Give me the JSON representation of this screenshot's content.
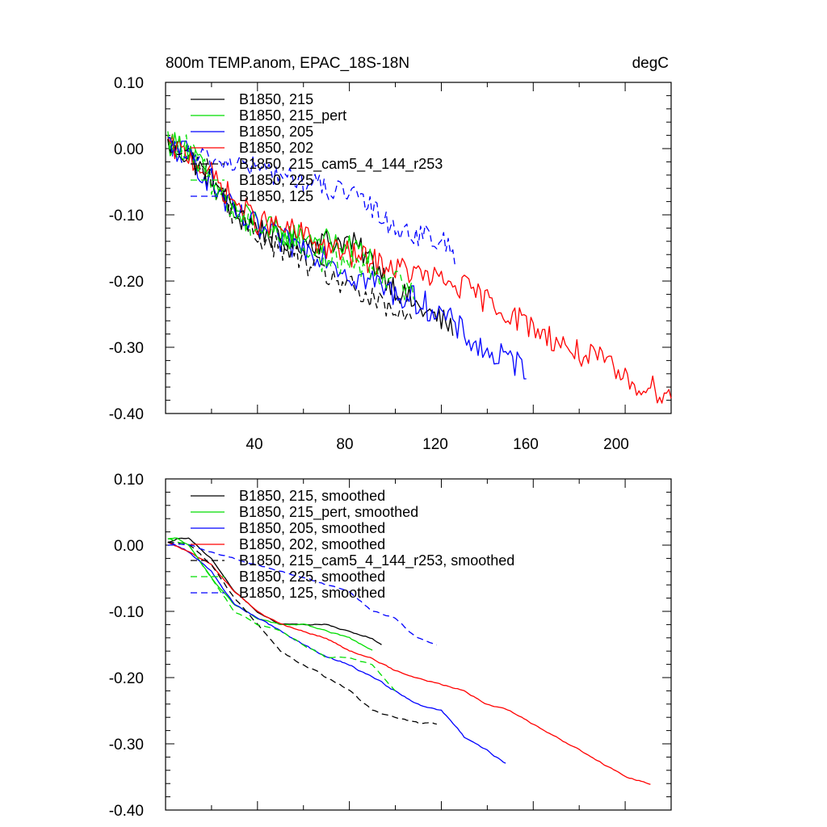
{
  "chart_data": [
    {
      "type": "line",
      "title": "800m TEMP.anom, EPAC_18S-18N",
      "units_label": "degC",
      "xlim": [
        0,
        220
      ],
      "ylim": [
        -0.4,
        0.1
      ],
      "x_ticks": [
        "40",
        "80",
        "120",
        "160",
        "200"
      ],
      "y_ticks": [
        "0.10",
        "0.00",
        "-0.10",
        "-0.20",
        "-0.30",
        "-0.40"
      ],
      "legend_position": "top-left",
      "series": [
        {
          "name": "B1850, 215",
          "color": "#000000",
          "dash": "solid",
          "length": 125,
          "anchors": [
            [
              1,
              0.005
            ],
            [
              10,
              -0.01
            ],
            [
              20,
              -0.05
            ],
            [
              30,
              -0.1
            ],
            [
              40,
              -0.12
            ],
            [
              50,
              -0.14
            ],
            [
              60,
              -0.14
            ],
            [
              70,
              -0.14
            ],
            [
              80,
              -0.14
            ],
            [
              90,
              -0.17
            ],
            [
              100,
              -0.21
            ],
            [
              110,
              -0.24
            ],
            [
              120,
              -0.26
            ],
            [
              125,
              -0.27
            ]
          ],
          "noise": 0.02
        },
        {
          "name": "B1850, 215_pert",
          "color": "#00dd00",
          "dash": "solid",
          "length": 90,
          "anchors": [
            [
              1,
              0.01
            ],
            [
              10,
              0.0
            ],
            [
              20,
              -0.05
            ],
            [
              30,
              -0.09
            ],
            [
              40,
              -0.11
            ],
            [
              50,
              -0.13
            ],
            [
              60,
              -0.13
            ],
            [
              70,
              -0.14
            ],
            [
              80,
              -0.15
            ],
            [
              90,
              -0.16
            ]
          ],
          "noise": 0.02
        },
        {
          "name": "B1850, 205",
          "color": "#0000ff",
          "dash": "solid",
          "length": 157,
          "anchors": [
            [
              1,
              0.005
            ],
            [
              10,
              -0.01
            ],
            [
              20,
              -0.05
            ],
            [
              30,
              -0.1
            ],
            [
              40,
              -0.12
            ],
            [
              50,
              -0.14
            ],
            [
              60,
              -0.15
            ],
            [
              70,
              -0.16
            ],
            [
              80,
              -0.19
            ],
            [
              90,
              -0.2
            ],
            [
              100,
              -0.22
            ],
            [
              110,
              -0.23
            ],
            [
              120,
              -0.25
            ],
            [
              130,
              -0.28
            ],
            [
              140,
              -0.31
            ],
            [
              150,
              -0.32
            ],
            [
              157,
              -0.33
            ]
          ],
          "noise": 0.022
        },
        {
          "name": "B1850, 202",
          "color": "#ff0000",
          "dash": "solid",
          "length": 220,
          "anchors": [
            [
              1,
              0.005
            ],
            [
              10,
              -0.01
            ],
            [
              20,
              -0.04
            ],
            [
              30,
              -0.08
            ],
            [
              40,
              -0.11
            ],
            [
              50,
              -0.12
            ],
            [
              60,
              -0.13
            ],
            [
              70,
              -0.15
            ],
            [
              80,
              -0.16
            ],
            [
              90,
              -0.17
            ],
            [
              100,
              -0.18
            ],
            [
              110,
              -0.19
            ],
            [
              120,
              -0.2
            ],
            [
              130,
              -0.21
            ],
            [
              140,
              -0.23
            ],
            [
              150,
              -0.25
            ],
            [
              160,
              -0.27
            ],
            [
              170,
              -0.29
            ],
            [
              180,
              -0.31
            ],
            [
              190,
              -0.32
            ],
            [
              200,
              -0.35
            ],
            [
              210,
              -0.36
            ],
            [
              220,
              -0.37
            ]
          ],
          "noise": 0.02
        },
        {
          "name": "B1850, 215_cam5_4_144_r253",
          "color": "#000000",
          "dash": "dashed",
          "length": 107,
          "anchors": [
            [
              1,
              0.0
            ],
            [
              10,
              -0.01
            ],
            [
              20,
              -0.04
            ],
            [
              30,
              -0.1
            ],
            [
              40,
              -0.13
            ],
            [
              50,
              -0.15
            ],
            [
              60,
              -0.17
            ],
            [
              70,
              -0.19
            ],
            [
              80,
              -0.21
            ],
            [
              90,
              -0.23
            ],
            [
              100,
              -0.25
            ],
            [
              107,
              -0.26
            ]
          ],
          "noise": 0.02
        },
        {
          "name": "B1850, 225",
          "color": "#00dd00",
          "dash": "dashed",
          "length": 108,
          "anchors": [
            [
              1,
              0.01
            ],
            [
              10,
              0.0
            ],
            [
              20,
              -0.05
            ],
            [
              30,
              -0.1
            ],
            [
              40,
              -0.12
            ],
            [
              50,
              -0.13
            ],
            [
              60,
              -0.15
            ],
            [
              70,
              -0.17
            ],
            [
              80,
              -0.17
            ],
            [
              90,
              -0.18
            ],
            [
              100,
              -0.2
            ],
            [
              108,
              -0.22
            ]
          ],
          "noise": 0.02
        },
        {
          "name": "B1850, 125",
          "color": "#0000ff",
          "dash": "dashed",
          "length": 126,
          "anchors": [
            [
              1,
              0.0
            ],
            [
              10,
              -0.01
            ],
            [
              20,
              -0.02
            ],
            [
              30,
              -0.02
            ],
            [
              40,
              -0.03
            ],
            [
              50,
              -0.04
            ],
            [
              60,
              -0.05
            ],
            [
              70,
              -0.06
            ],
            [
              80,
              -0.07
            ],
            [
              90,
              -0.09
            ],
            [
              100,
              -0.12
            ],
            [
              110,
              -0.13
            ],
            [
              120,
              -0.14
            ],
            [
              126,
              -0.16
            ]
          ],
          "noise": 0.018
        }
      ]
    },
    {
      "type": "line",
      "xlim": [
        0,
        220
      ],
      "ylim": [
        -0.4,
        0.1
      ],
      "y_ticks": [
        "0.10",
        "0.00",
        "-0.10",
        "-0.20",
        "-0.30",
        "-0.40"
      ],
      "legend_position": "top-left",
      "series": [
        {
          "name": "B1850, 215, smoothed",
          "color": "#000000",
          "dash": "solid",
          "length": 94,
          "anchors": [
            [
              1,
              0.005
            ],
            [
              5,
              0.01
            ],
            [
              10,
              0.01
            ],
            [
              20,
              -0.02
            ],
            [
              30,
              -0.07
            ],
            [
              40,
              -0.1
            ],
            [
              50,
              -0.12
            ],
            [
              60,
              -0.12
            ],
            [
              70,
              -0.12
            ],
            [
              80,
              -0.13
            ],
            [
              90,
              -0.14
            ],
            [
              94,
              -0.15
            ]
          ],
          "noise": 0.003
        },
        {
          "name": "B1850, 215_pert, smoothed",
          "color": "#00dd00",
          "dash": "solid",
          "length": 90,
          "anchors": [
            [
              1,
              0.01
            ],
            [
              5,
              0.01
            ],
            [
              10,
              0.0
            ],
            [
              20,
              -0.05
            ],
            [
              30,
              -0.09
            ],
            [
              40,
              -0.11
            ],
            [
              50,
              -0.12
            ],
            [
              60,
              -0.12
            ],
            [
              70,
              -0.13
            ],
            [
              80,
              -0.14
            ],
            [
              90,
              -0.16
            ]
          ],
          "noise": 0.003
        },
        {
          "name": "B1850, 205, smoothed",
          "color": "#0000ff",
          "dash": "solid",
          "length": 148,
          "anchors": [
            [
              1,
              0.005
            ],
            [
              10,
              -0.01
            ],
            [
              20,
              -0.04
            ],
            [
              30,
              -0.09
            ],
            [
              40,
              -0.11
            ],
            [
              50,
              -0.13
            ],
            [
              60,
              -0.15
            ],
            [
              70,
              -0.17
            ],
            [
              80,
              -0.18
            ],
            [
              90,
              -0.2
            ],
            [
              100,
              -0.22
            ],
            [
              110,
              -0.24
            ],
            [
              120,
              -0.25
            ],
            [
              130,
              -0.29
            ],
            [
              140,
              -0.31
            ],
            [
              148,
              -0.33
            ]
          ],
          "noise": 0.004
        },
        {
          "name": "B1850, 202, smoothed",
          "color": "#ff0000",
          "dash": "solid",
          "length": 211,
          "anchors": [
            [
              1,
              0.005
            ],
            [
              10,
              -0.01
            ],
            [
              20,
              -0.03
            ],
            [
              30,
              -0.07
            ],
            [
              40,
              -0.1
            ],
            [
              50,
              -0.12
            ],
            [
              60,
              -0.13
            ],
            [
              70,
              -0.14
            ],
            [
              80,
              -0.16
            ],
            [
              90,
              -0.17
            ],
            [
              100,
              -0.19
            ],
            [
              110,
              -0.2
            ],
            [
              120,
              -0.21
            ],
            [
              130,
              -0.22
            ],
            [
              140,
              -0.24
            ],
            [
              150,
              -0.25
            ],
            [
              160,
              -0.27
            ],
            [
              170,
              -0.29
            ],
            [
              180,
              -0.31
            ],
            [
              190,
              -0.33
            ],
            [
              200,
              -0.35
            ],
            [
              211,
              -0.36
            ]
          ],
          "noise": 0.003
        },
        {
          "name": "B1850, 215_cam5_4_144_r253, smoothed",
          "color": "#000000",
          "dash": "dashed",
          "length": 118,
          "anchors": [
            [
              1,
              0.005
            ],
            [
              10,
              0.0
            ],
            [
              20,
              -0.03
            ],
            [
              30,
              -0.08
            ],
            [
              40,
              -0.12
            ],
            [
              50,
              -0.16
            ],
            [
              60,
              -0.18
            ],
            [
              70,
              -0.2
            ],
            [
              80,
              -0.22
            ],
            [
              90,
              -0.25
            ],
            [
              100,
              -0.26
            ],
            [
              110,
              -0.27
            ],
            [
              118,
              -0.27
            ]
          ],
          "noise": 0.004
        },
        {
          "name": "B1850, 225, smoothed",
          "color": "#00dd00",
          "dash": "dashed",
          "length": 100,
          "anchors": [
            [
              1,
              0.01
            ],
            [
              10,
              0.0
            ],
            [
              20,
              -0.05
            ],
            [
              30,
              -0.1
            ],
            [
              40,
              -0.12
            ],
            [
              50,
              -0.13
            ],
            [
              60,
              -0.15
            ],
            [
              70,
              -0.17
            ],
            [
              80,
              -0.17
            ],
            [
              90,
              -0.18
            ],
            [
              100,
              -0.22
            ]
          ],
          "noise": 0.003
        },
        {
          "name": "B1850, 125, smoothed",
          "color": "#0000ff",
          "dash": "dashed",
          "length": 118,
          "anchors": [
            [
              1,
              0.0
            ],
            [
              10,
              -0.0
            ],
            [
              20,
              -0.01
            ],
            [
              30,
              -0.02
            ],
            [
              40,
              -0.03
            ],
            [
              50,
              -0.04
            ],
            [
              60,
              -0.05
            ],
            [
              70,
              -0.06
            ],
            [
              80,
              -0.07
            ],
            [
              90,
              -0.1
            ],
            [
              100,
              -0.11
            ],
            [
              106,
              -0.13
            ],
            [
              110,
              -0.14
            ],
            [
              118,
              -0.15
            ]
          ],
          "noise": 0.003
        }
      ]
    }
  ]
}
